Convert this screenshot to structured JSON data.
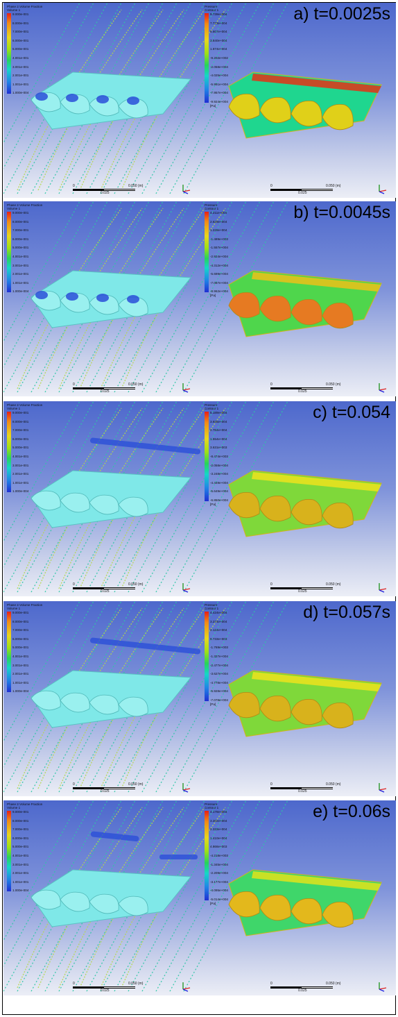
{
  "panels": [
    {
      "label": "a) t=0.0025s",
      "vf_legend": {
        "title1": "Phase 2.Volume Fraction",
        "title2": "Volume 1",
        "ticks": [
          "9.000e-001",
          "8.000e-001",
          "7.000e-001",
          "6.000e-001",
          "5.000e-001",
          "4.001e-001",
          "3.001e-001",
          "2.001e-001",
          "1.001e-001",
          "1.000e-004"
        ]
      },
      "p_legend": {
        "title1": "Pressure",
        "title2": "Contour 1",
        "ticks": [
          "9.739e+004",
          "7.773e+004",
          "5.807e+004",
          "3.840e+004",
          "1.874e+004",
          "-9.202e+002",
          "-2.058e+004",
          "-4.025e+004",
          "-5.991e+004",
          "-7.957e+004",
          "-9.924e+004"
        ],
        "unit": "[Pa]"
      },
      "scale_left": {
        "zero": "0",
        "end": "0.050 (m)",
        "mid": "0.025"
      },
      "scale_right": {
        "zero": "0",
        "end": "0.050 (m)",
        "mid": "0.025"
      },
      "pressure_colors": [
        "#d83c1c",
        "#1fd68f",
        "#e0d019"
      ]
    },
    {
      "label": "b) t=0.0045s",
      "vf_legend": {
        "title1": "Phase 2.Volume Fraction",
        "title2": "Volume 1",
        "ticks": [
          "9.000e-001",
          "8.000e-001",
          "7.000e-001",
          "6.000e-001",
          "5.000e-001",
          "4.001e-001",
          "3.001e-001",
          "2.001e-001",
          "1.001e-001",
          "1.000e-004"
        ]
      },
      "p_legend": {
        "title1": "Pressure",
        "title2": "Contour 1",
        "ticks": [
          "4.211e+004",
          "2.629e+004",
          "1.228e+004",
          "-1.489e+003",
          "-1.557e+004",
          "-2.924e+004",
          "-4.312e+004",
          "-5.699e+004",
          "-7.087e+004",
          "-8.962e+004"
        ],
        "unit": "[Pa]"
      },
      "scale_left": {
        "zero": "0",
        "end": "0.050 (m)",
        "mid": "0.025"
      },
      "scale_right": {
        "zero": "0",
        "end": "0.050 (m)",
        "mid": "0.025"
      },
      "pressure_colors": [
        "#e3c21c",
        "#4fd64c",
        "#e67a22"
      ]
    },
    {
      "label": "c) t=0.054",
      "vf_legend": {
        "title1": "Phase 2.Volume Fraction",
        "title2": "Volume 1",
        "ticks": [
          "9.000e-001",
          "8.000e-001",
          "7.000e-001",
          "6.000e-001",
          "5.000e-001",
          "4.001e-001",
          "3.001e-001",
          "2.001e-001",
          "1.001e-001",
          "1.000e-004"
        ]
      },
      "p_legend": {
        "title1": "Pressure",
        "title2": "Contour 1",
        "ticks": [
          "5.189e+004",
          "3.935e+004",
          "2.784e+004",
          "1.554e+004",
          "3.631e+003",
          "-8.474e+003",
          "-2.058e+004",
          "-3.248e+004",
          "-4.449e+004",
          "-5.649e+004",
          "-6.850e+004"
        ],
        "unit": "[Pa]"
      },
      "scale_left": {
        "zero": "0",
        "end": "0.050 (m)",
        "mid": "0.025"
      },
      "scale_right": {
        "zero": "0",
        "end": "0.050 (m)",
        "mid": "0.025"
      },
      "pressure_colors": [
        "#e8e21f",
        "#7fd83a",
        "#d8b21c"
      ]
    },
    {
      "label": "d) t=0.057s",
      "vf_legend": {
        "title1": "Phase 2.Volume Fraction",
        "title2": "Volume 1",
        "ticks": [
          "9.000e-001",
          "8.000e-001",
          "7.000e-001",
          "6.000e-001",
          "5.000e-001",
          "4.001e-001",
          "3.001e-001",
          "2.001e-001",
          "1.001e-001",
          "1.000e-004"
        ]
      },
      "p_legend": {
        "title1": "Pressure",
        "title2": "Contour 1",
        "ticks": [
          "4.424e+004",
          "3.274e+004",
          "2.124e+004",
          "9.733e+003",
          "-1.769e+003",
          "-1.327e+004",
          "-2.477e+004",
          "-3.627e+004",
          "-4.778e+004",
          "-5.928e+004",
          "-7.078e+004"
        ],
        "unit": "[Pa]"
      },
      "scale_left": {
        "zero": "0",
        "end": "0.050 (m)",
        "mid": "0.025"
      },
      "scale_right": {
        "zero": "0",
        "end": "0.050 (m)",
        "mid": "0.025"
      },
      "pressure_colors": [
        "#e8e21f",
        "#7fd83a",
        "#d8b21c"
      ]
    },
    {
      "label": "e) t=0.06s",
      "vf_legend": {
        "title1": "Phase 2.Volume Fraction",
        "title2": "Volume 1",
        "ticks": [
          "9.000e-001",
          "8.000e-001",
          "7.000e-001",
          "6.000e-001",
          "5.000e-001",
          "4.001e-001",
          "3.001e-001",
          "2.001e-001",
          "1.001e-001",
          "1.000e-004"
        ]
      },
      "p_legend": {
        "title1": "Pressure",
        "title2": "Contour 1",
        "ticks": [
          "4.178e+004",
          "3.202e+004",
          "2.333e+004",
          "1.410e+004",
          "4.866e+003",
          "-4.218e+003",
          "-1.345e+004",
          "-2.209e+004",
          "-3.177e+004",
          "-4.095e+004",
          "-5.014e+004"
        ],
        "unit": "[Pa]"
      },
      "scale_left": {
        "zero": "0",
        "end": "0.050 (m)",
        "mid": "0.025"
      },
      "scale_right": {
        "zero": "0",
        "end": "0.050 (m)",
        "mid": "0.025"
      },
      "pressure_colors": [
        "#d8e21f",
        "#3fd66a",
        "#e3b81c"
      ]
    }
  ],
  "colors": {
    "hydrofoil": "#7fe8e8",
    "streamline": "#2ec7a6",
    "cavity": "#2a4fd8"
  }
}
